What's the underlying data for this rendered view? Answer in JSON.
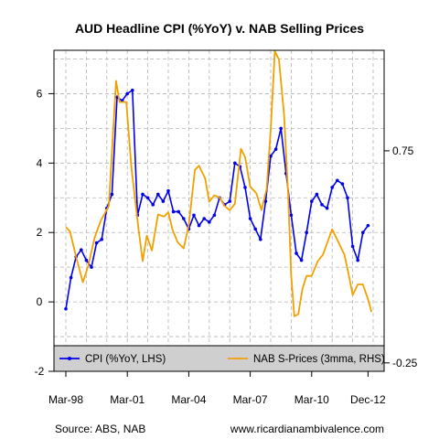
{
  "chart_data": {
    "type": "line",
    "title": "AUD Headline CPI (%YoY) v. NAB Selling Prices",
    "source": "Source: ABS, NAB",
    "website": "www.ricardianambivalence.com",
    "x_range": [
      1998.0,
      2013.0
    ],
    "x_tick_labels": [
      {
        "label": "Mar-98",
        "x": 1998.0
      },
      {
        "label": "Mar-01",
        "x": 2001.0
      },
      {
        "label": "Mar-04",
        "x": 2004.0
      },
      {
        "label": "Mar-07",
        "x": 2007.0
      },
      {
        "label": "Mar-10",
        "x": 2010.0
      },
      {
        "label": "Dec-12",
        "x": 2012.75
      }
    ],
    "left_axis": {
      "range": [
        -2.0,
        7.25
      ],
      "ticks": [
        -2,
        0,
        2,
        4,
        6
      ]
    },
    "right_axis": {
      "range": [
        -0.2897,
        1.2239
      ],
      "ticks": [
        {
          "value": 0.75,
          "label": "0.75"
        },
        {
          "value": -0.25,
          "label": "-0.25"
        }
      ]
    },
    "grid": true,
    "legend_position": "bottom",
    "series": [
      {
        "name": "CPI (%YoY, LHS)",
        "axis": "left",
        "color": "#0000ee",
        "marker": "point",
        "points": [
          [
            1998.0,
            -0.2
          ],
          [
            1998.25,
            0.7
          ],
          [
            1998.5,
            1.3
          ],
          [
            1998.75,
            1.5
          ],
          [
            1999.0,
            1.2
          ],
          [
            1999.25,
            1.0
          ],
          [
            1999.5,
            1.7
          ],
          [
            1999.75,
            1.8
          ],
          [
            2000.0,
            2.7
          ],
          [
            2000.25,
            3.1
          ],
          [
            2000.5,
            5.9
          ],
          [
            2000.75,
            5.8
          ],
          [
            2001.0,
            6.0
          ],
          [
            2001.25,
            6.1
          ],
          [
            2001.5,
            2.5
          ],
          [
            2001.75,
            3.1
          ],
          [
            2002.0,
            3.0
          ],
          [
            2002.25,
            2.8
          ],
          [
            2002.5,
            3.1
          ],
          [
            2002.75,
            2.9
          ],
          [
            2003.0,
            3.2
          ],
          [
            2003.25,
            2.6
          ],
          [
            2003.5,
            2.6
          ],
          [
            2003.75,
            2.4
          ],
          [
            2004.0,
            2.1
          ],
          [
            2004.25,
            2.5
          ],
          [
            2004.5,
            2.2
          ],
          [
            2004.75,
            2.4
          ],
          [
            2005.0,
            2.3
          ],
          [
            2005.25,
            2.5
          ],
          [
            2005.5,
            3.0
          ],
          [
            2005.75,
            2.8
          ],
          [
            2006.0,
            2.9
          ],
          [
            2006.25,
            4.0
          ],
          [
            2006.5,
            3.9
          ],
          [
            2006.75,
            3.3
          ],
          [
            2007.0,
            2.4
          ],
          [
            2007.25,
            2.1
          ],
          [
            2007.5,
            1.8
          ],
          [
            2007.75,
            2.9
          ],
          [
            2008.0,
            4.2
          ],
          [
            2008.25,
            4.4
          ],
          [
            2008.5,
            5.0
          ],
          [
            2008.75,
            3.7
          ],
          [
            2009.0,
            2.5
          ],
          [
            2009.25,
            1.4
          ],
          [
            2009.5,
            1.2
          ],
          [
            2009.75,
            2.0
          ],
          [
            2010.0,
            2.9
          ],
          [
            2010.25,
            3.1
          ],
          [
            2010.5,
            2.8
          ],
          [
            2010.75,
            2.7
          ],
          [
            2011.0,
            3.3
          ],
          [
            2011.25,
            3.5
          ],
          [
            2011.5,
            3.4
          ],
          [
            2011.75,
            3.0
          ],
          [
            2012.0,
            1.6
          ],
          [
            2012.25,
            1.2
          ],
          [
            2012.5,
            2.0
          ],
          [
            2012.75,
            2.2
          ]
        ]
      },
      {
        "name": "NAB S-Prices (3mma, RHS)",
        "axis": "right",
        "color": "#f2a000",
        "marker": "none",
        "points": [
          [
            1998.0,
            0.39
          ],
          [
            1998.2,
            0.37
          ],
          [
            1998.5,
            0.25
          ],
          [
            1998.83,
            0.13
          ],
          [
            1999.1,
            0.21
          ],
          [
            1999.4,
            0.34
          ],
          [
            1999.7,
            0.42
          ],
          [
            2000.1,
            0.49
          ],
          [
            2000.45,
            1.08
          ],
          [
            2000.62,
            0.98
          ],
          [
            2000.95,
            0.98
          ],
          [
            2001.2,
            0.67
          ],
          [
            2001.55,
            0.38
          ],
          [
            2001.75,
            0.23
          ],
          [
            2001.95,
            0.35
          ],
          [
            2002.2,
            0.28
          ],
          [
            2002.5,
            0.45
          ],
          [
            2002.8,
            0.44
          ],
          [
            2003.0,
            0.46
          ],
          [
            2003.2,
            0.38
          ],
          [
            2003.45,
            0.32
          ],
          [
            2003.75,
            0.29
          ],
          [
            2004.0,
            0.4
          ],
          [
            2004.3,
            0.66
          ],
          [
            2004.5,
            0.68
          ],
          [
            2004.8,
            0.62
          ],
          [
            2005.0,
            0.51
          ],
          [
            2005.25,
            0.54
          ],
          [
            2005.5,
            0.53
          ],
          [
            2005.75,
            0.49
          ],
          [
            2006.0,
            0.47
          ],
          [
            2006.25,
            0.5
          ],
          [
            2006.55,
            0.76
          ],
          [
            2006.75,
            0.72
          ],
          [
            2007.0,
            0.58
          ],
          [
            2007.3,
            0.55
          ],
          [
            2007.55,
            0.47
          ],
          [
            2007.8,
            0.57
          ],
          [
            2008.0,
            0.85
          ],
          [
            2008.2,
            1.22
          ],
          [
            2008.4,
            1.18
          ],
          [
            2008.65,
            0.92
          ],
          [
            2008.85,
            0.55
          ],
          [
            2009.0,
            0.16
          ],
          [
            2009.15,
            -0.03
          ],
          [
            2009.35,
            -0.02
          ],
          [
            2009.55,
            0.1
          ],
          [
            2009.75,
            0.16
          ],
          [
            2010.0,
            0.16
          ],
          [
            2010.3,
            0.23
          ],
          [
            2010.55,
            0.26
          ],
          [
            2010.85,
            0.34
          ],
          [
            2011.0,
            0.38
          ],
          [
            2011.35,
            0.31
          ],
          [
            2011.6,
            0.26
          ],
          [
            2011.8,
            0.17
          ],
          [
            2012.0,
            0.07
          ],
          [
            2012.25,
            0.12
          ],
          [
            2012.5,
            0.12
          ],
          [
            2012.75,
            0.05
          ],
          [
            2012.92,
            -0.01
          ]
        ]
      }
    ]
  }
}
